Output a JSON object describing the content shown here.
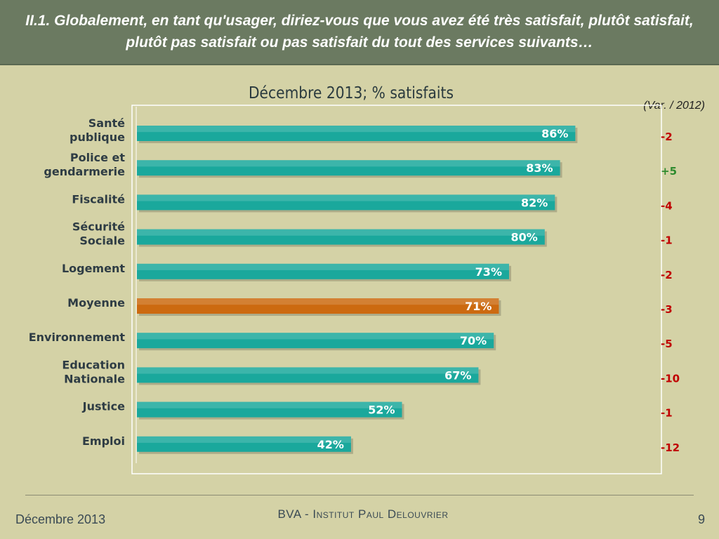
{
  "header": {
    "title": "II.1. Globalement, en tant qu'usager, diriez-vous que vous avez été très satisfait, plutôt satisfait, plutôt pas satisfait ou pas satisfait du tout des services suivants…"
  },
  "chart_label": {
    "var_note": "(Var. / 2012)"
  },
  "footer": {
    "date": "Décembre 2013",
    "org": "BVA - Institut Paul Delouvrier",
    "page": "9"
  },
  "colors": {
    "bar": "#1aa89c",
    "bar_highlight": "#cc6a10",
    "var_negative": "#c00000",
    "var_positive": "#2e8b2e"
  },
  "chart_data": {
    "type": "bar",
    "orientation": "horizontal",
    "subtitle": "Décembre 2013; % satisfaits",
    "categories": [
      [
        "Santé",
        "publique"
      ],
      [
        "Police et",
        "gendarmerie"
      ],
      [
        "Fiscalité"
      ],
      [
        "Sécurité",
        "Sociale"
      ],
      [
        "Logement"
      ],
      [
        "Moyenne"
      ],
      [
        "Environnement"
      ],
      [
        "Education",
        "Nationale"
      ],
      [
        "Justice"
      ],
      [
        "Emploi"
      ]
    ],
    "values": [
      86,
      83,
      82,
      80,
      73,
      71,
      70,
      67,
      52,
      42
    ],
    "value_labels": [
      "86%",
      "83%",
      "82%",
      "80%",
      "73%",
      "71%",
      "70%",
      "67%",
      "52%",
      "42%"
    ],
    "variation": [
      "-2",
      "+5",
      "-4",
      "-1",
      "-2",
      "-3",
      "-5",
      "-10",
      "-1",
      "-12"
    ],
    "highlight_index": 5,
    "xlim": [
      0,
      100
    ],
    "grid": false,
    "legend": "none"
  }
}
